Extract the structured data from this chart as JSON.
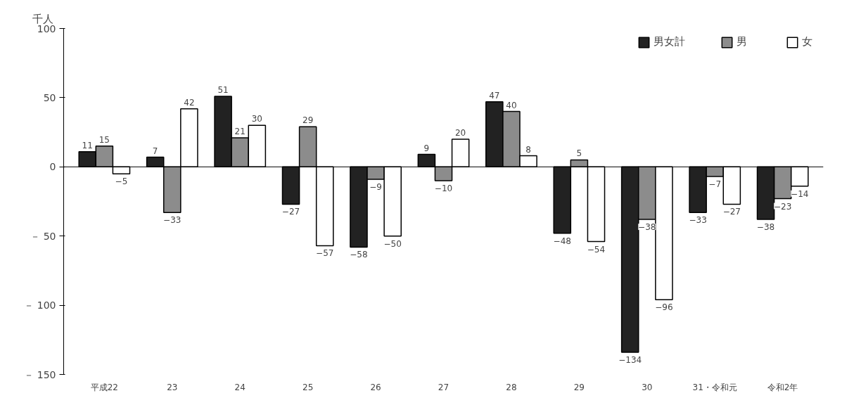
{
  "chart_data": {
    "type": "bar",
    "ylabel": "千人",
    "categories": [
      "平成22",
      "23",
      "24",
      "25",
      "26",
      "27",
      "28",
      "29",
      "30",
      "31・令和元",
      "令和2年"
    ],
    "series": [
      {
        "name": "男女計",
        "color": "#222222",
        "values": [
          11,
          7,
          51,
          -27,
          -58,
          9,
          47,
          -48,
          -134,
          -33,
          -38
        ],
        "value_labels": [
          "11",
          "7",
          "51",
          "−27",
          "−58",
          "9",
          "47",
          "−48",
          "−134",
          "−33",
          "−38"
        ]
      },
      {
        "name": "男",
        "color": "#8c8c8c",
        "values": [
          15,
          -33,
          21,
          29,
          -9,
          -10,
          40,
          5,
          -38,
          -7,
          -23
        ],
        "value_labels": [
          "15",
          "−33",
          "21",
          "29",
          "−9",
          "−10",
          "40",
          "5",
          "−38",
          "−7",
          "−23"
        ]
      },
      {
        "name": "女",
        "color": "#ffffff",
        "values": [
          -5,
          42,
          30,
          -57,
          -50,
          20,
          8,
          -54,
          -96,
          -27,
          -14
        ],
        "value_labels": [
          "−5",
          "42",
          "30",
          "−57",
          "−50",
          "20",
          "8",
          "−54",
          "−96",
          "−27",
          "−14"
        ]
      }
    ],
    "ylim": [
      -150,
      100
    ],
    "yticks": [
      {
        "value": -150,
        "label": "－ 150"
      },
      {
        "value": -100,
        "label": "－ 100"
      },
      {
        "value": -50,
        "label": "－ 50"
      },
      0,
      50,
      100
    ],
    "legend": "top right"
  }
}
